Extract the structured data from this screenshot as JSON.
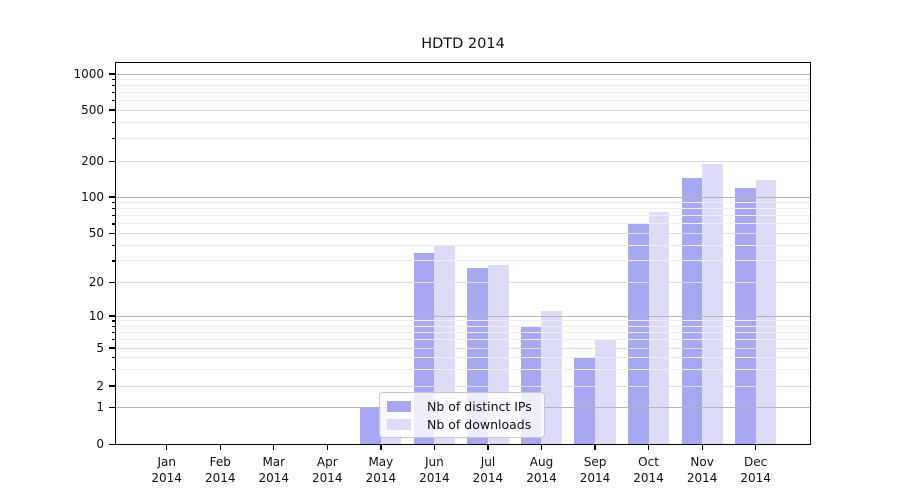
{
  "title": "HDTD 2014",
  "chart_data": {
    "type": "bar",
    "title": "HDTD 2014",
    "categories": [
      "Jan",
      "Feb",
      "Mar",
      "Apr",
      "May",
      "Jun",
      "Jul",
      "Aug",
      "Sep",
      "Oct",
      "Nov",
      "Dec"
    ],
    "category_year_line": "2014",
    "series": [
      {
        "name": "Nb of distinct IPs",
        "color": "#a7a7f2",
        "values": [
          0,
          0,
          0,
          0,
          1,
          35,
          26,
          8,
          4,
          60,
          145,
          120
        ]
      },
      {
        "name": "Nb of downloads",
        "color": "#dcdcf9",
        "values": [
          0,
          0,
          0,
          0,
          1,
          40,
          28,
          11,
          6,
          75,
          190,
          140
        ]
      }
    ],
    "xlabel": "",
    "ylabel": "",
    "y_axis": {
      "scale": "symlog",
      "tick_values": [
        0,
        1,
        2,
        5,
        10,
        20,
        50,
        100,
        200,
        500,
        1000
      ],
      "range": [
        0,
        1000
      ]
    },
    "grid": true,
    "legend": {
      "position": "lower-center",
      "entries": [
        "Nb of distinct IPs",
        "Nb of downloads"
      ]
    }
  }
}
